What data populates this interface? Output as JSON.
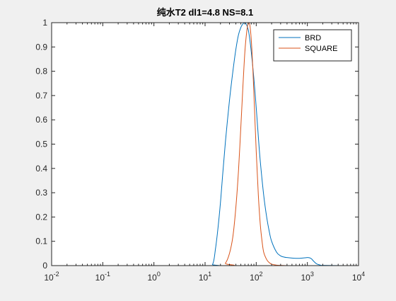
{
  "chart_data": {
    "type": "line",
    "title": "纯水T2 dl1=4.8 NS=8.1",
    "xlabel": "",
    "ylabel": "",
    "xscale": "log",
    "xlim": [
      0.01,
      10000
    ],
    "ylim": [
      0,
      1
    ],
    "x_tick_labels": [
      {
        "base": "10",
        "exp": "-2"
      },
      {
        "base": "10",
        "exp": "-1"
      },
      {
        "base": "10",
        "exp": "0"
      },
      {
        "base": "10",
        "exp": "1"
      },
      {
        "base": "10",
        "exp": "2"
      },
      {
        "base": "10",
        "exp": "3"
      },
      {
        "base": "10",
        "exp": "4"
      }
    ],
    "y_ticks": [
      0,
      0.1,
      0.2,
      0.3,
      0.4,
      0.5,
      0.6,
      0.7,
      0.8,
      0.9,
      1
    ],
    "y_tick_labels": [
      "0",
      "0.1",
      "0.2",
      "0.3",
      "0.4",
      "0.5",
      "0.6",
      "0.7",
      "0.8",
      "0.9",
      "1"
    ],
    "grid": false,
    "legend_position": "top-right",
    "series": [
      {
        "name": "BRD",
        "color": "#0072bd",
        "x": [
          0.01,
          10,
          14,
          16,
          18,
          20,
          22,
          25,
          30,
          35,
          40,
          45,
          50,
          55,
          60,
          65,
          70,
          75,
          80,
          90,
          100,
          110,
          120,
          140,
          160,
          180,
          200,
          250,
          300,
          350,
          400,
          500,
          600,
          700,
          800,
          900,
          1000,
          1100,
          1200,
          1300,
          1500,
          1800,
          2000,
          5000,
          10000
        ],
        "y": [
          0,
          0,
          0.005,
          0.07,
          0.16,
          0.26,
          0.37,
          0.51,
          0.68,
          0.8,
          0.89,
          0.95,
          0.98,
          0.995,
          1,
          0.99,
          0.97,
          0.93,
          0.88,
          0.77,
          0.65,
          0.53,
          0.43,
          0.29,
          0.2,
          0.14,
          0.1,
          0.055,
          0.04,
          0.035,
          0.033,
          0.031,
          0.03,
          0.03,
          0.031,
          0.032,
          0.033,
          0.032,
          0.028,
          0.02,
          0.008,
          0.002,
          0.001,
          0,
          0
        ]
      },
      {
        "name": "SQUARE",
        "color": "#d95319",
        "x": [
          0.01,
          20,
          25,
          30,
          35,
          40,
          45,
          50,
          55,
          60,
          65,
          70,
          75,
          80,
          85,
          90,
          100,
          110,
          120,
          130,
          140,
          160,
          180,
          200,
          250,
          300,
          400,
          500,
          700,
          1000,
          2000,
          10000
        ],
        "y": [
          0,
          0,
          0.01,
          0.05,
          0.12,
          0.24,
          0.39,
          0.57,
          0.74,
          0.88,
          0.96,
          1,
          0.99,
          0.93,
          0.83,
          0.71,
          0.47,
          0.29,
          0.17,
          0.1,
          0.055,
          0.025,
          0.012,
          0.006,
          0.002,
          0.001,
          0,
          0,
          0,
          0,
          0,
          0
        ]
      }
    ]
  }
}
